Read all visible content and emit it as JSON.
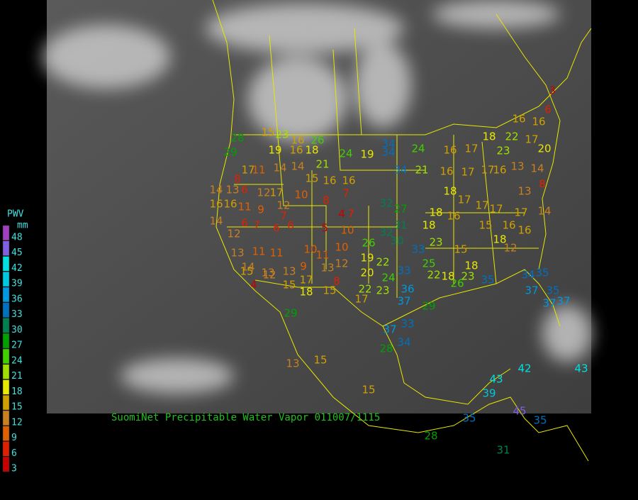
{
  "title": "SuomiNet Precipitable Water Vapor 011007/1115",
  "legend": {
    "title": "PWV",
    "unit": "mm",
    "levels": [
      48,
      45,
      42,
      39,
      36,
      33,
      30,
      27,
      24,
      21,
      18,
      15,
      12,
      9,
      6,
      3
    ],
    "colors": [
      "#a040c0",
      "#8060e0",
      "#00e0e0",
      "#00c8e0",
      "#0098e0",
      "#0070c0",
      "#008050",
      "#00a000",
      "#40d000",
      "#a0e000",
      "#e8e800",
      "#d0a000",
      "#c88020",
      "#e06000",
      "#e02000",
      "#c80000"
    ]
  },
  "stations": [
    3,
    6,
    16,
    16,
    28,
    29,
    15,
    23,
    16,
    26,
    19,
    16,
    18,
    24,
    19,
    34,
    34,
    24,
    34,
    21,
    16,
    17,
    18,
    22,
    23,
    17,
    20,
    8,
    14,
    13,
    6,
    12,
    17,
    17,
    11,
    14,
    14,
    21,
    15,
    16,
    16,
    8,
    7,
    4,
    7,
    16,
    16,
    11,
    9,
    12,
    10,
    14,
    6,
    7,
    6,
    6,
    7,
    5,
    10,
    26,
    32,
    32,
    27,
    31,
    30,
    33,
    23,
    18,
    18,
    16,
    17,
    17,
    17,
    17,
    16,
    14,
    16,
    15,
    18,
    12,
    15,
    18,
    18,
    16,
    17,
    17,
    16,
    13,
    14,
    13,
    8,
    12,
    13,
    11,
    11,
    14,
    13,
    13,
    9,
    10,
    13,
    12,
    10,
    11,
    19,
    20,
    22,
    24,
    33,
    25,
    22,
    18,
    23,
    35,
    34,
    35,
    35,
    37,
    37,
    37,
    15,
    4,
    12,
    15,
    17,
    18,
    15,
    8,
    17,
    22,
    23,
    36,
    37,
    29,
    33,
    37,
    34,
    28,
    29,
    15,
    13,
    15,
    39,
    43,
    42,
    43,
    45,
    35,
    35,
    28,
    31,
    26
  ]
}
